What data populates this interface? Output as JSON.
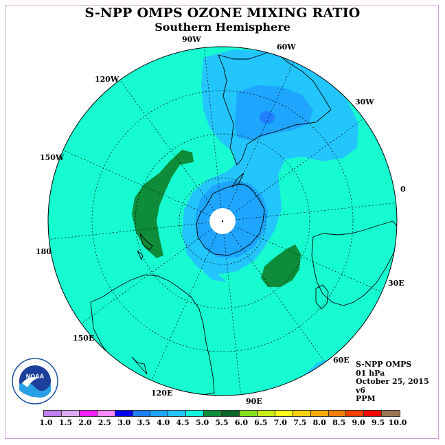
{
  "title": "S-NPP OMPS OZONE MIXING RATIO",
  "subtitle": "Southern Hemisphere",
  "longitude_labels": [
    "90W",
    "60W",
    "30W",
    "0",
    "30E",
    "60E",
    "90E",
    "120E",
    "150E",
    "180",
    "150W",
    "120W"
  ],
  "info": {
    "instrument": "S-NPP OMPS",
    "level": "01 hPa",
    "date": "October 25, 2015",
    "version": "v6",
    "unit": "PPM"
  },
  "logo": {
    "text": "NOAA"
  },
  "colors": {
    "background": "#16fcd0",
    "coast": "#000000"
  },
  "colorbar": {
    "colors": [
      "#bf7ff2",
      "#dfaaf5",
      "#ff22ff",
      "#fe8aff",
      "#0000f3",
      "#1f7fff",
      "#1da5ff",
      "#23c5fd",
      "#12f8dc",
      "#0d8c3a",
      "#0a6626",
      "#83e01a",
      "#c8f018",
      "#ffff1a",
      "#f6d10a",
      "#f2ac07",
      "#f27f06",
      "#ff4000",
      "#ff0000",
      "#9a7553"
    ],
    "ticks": [
      "1.0",
      "1.5",
      "2.0",
      "2.5",
      "3.0",
      "3.5",
      "4.0",
      "4.5",
      "5.0",
      "5.5",
      "6.0",
      "6.5",
      "7.0",
      "7.5",
      "8.0",
      "8.5",
      "9.0",
      "9.5",
      "10.0"
    ]
  }
}
